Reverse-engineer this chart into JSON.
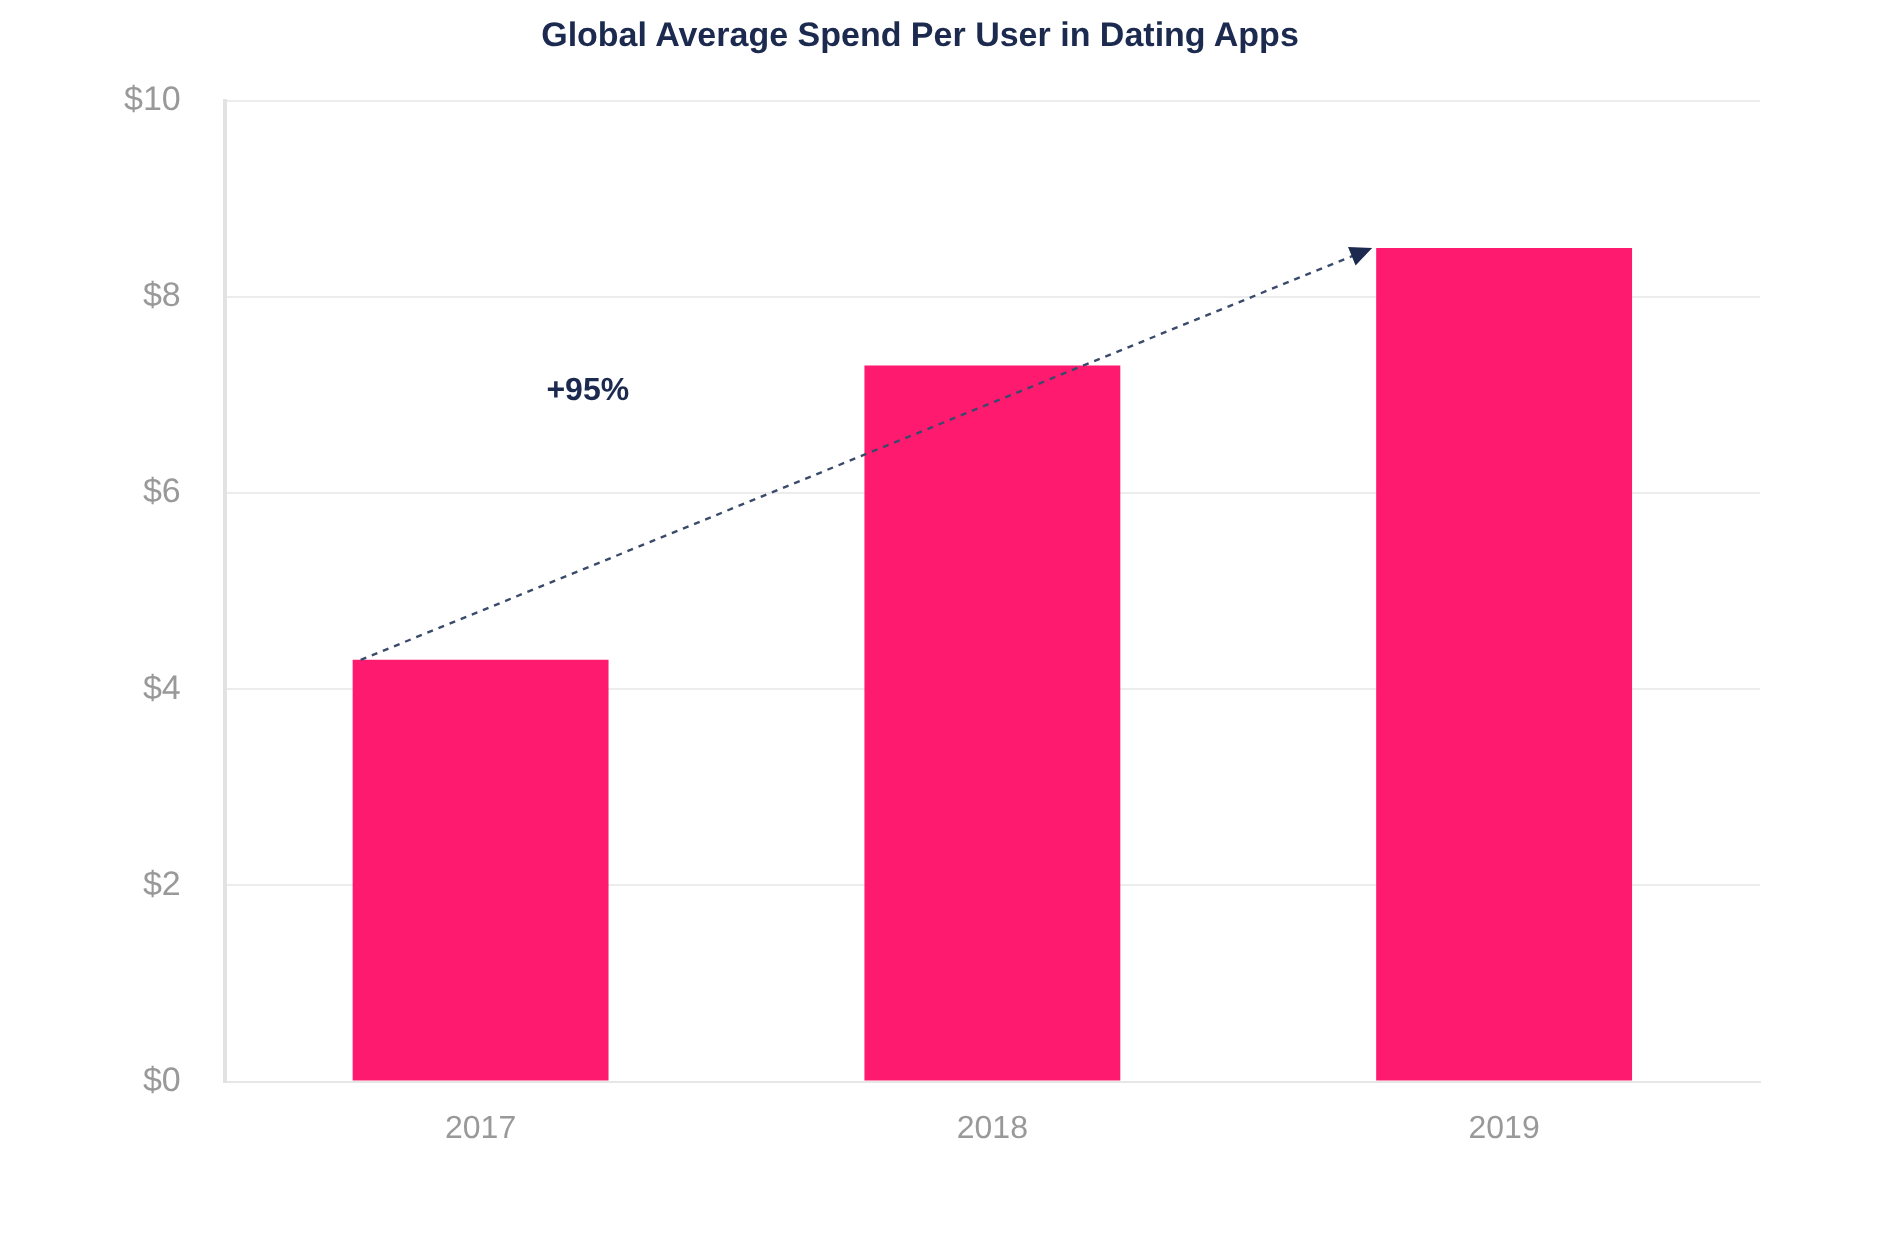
{
  "chart_data": {
    "type": "bar",
    "title": "Global Average Spend Per User in Dating Apps",
    "categories": [
      "2017",
      "2018",
      "2019"
    ],
    "values": [
      4.3,
      7.3,
      8.5
    ],
    "color": "#fd1a6f",
    "ylim": [
      0,
      10
    ],
    "yticks": [
      {
        "value": 0,
        "label": "$0"
      },
      {
        "value": 2,
        "label": "$2"
      },
      {
        "value": 4,
        "label": "$4"
      },
      {
        "value": 6,
        "label": "$6"
      },
      {
        "value": 8,
        "label": "$8"
      },
      {
        "value": 10,
        "label": "$10"
      }
    ],
    "grid": "y",
    "annotations": [
      "+95%"
    ]
  }
}
